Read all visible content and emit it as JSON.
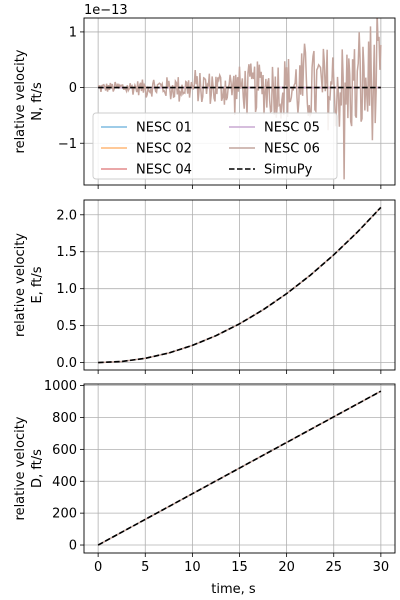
{
  "chart_data": [
    {
      "type": "line",
      "title": "",
      "xlabel": "",
      "ylabel": "relative velocity\nN, ft/s",
      "y_offset_label": "1e−13",
      "xlim": [
        -1.5,
        31.5
      ],
      "ylim": [
        -1.75,
        1.25
      ],
      "x_ticks": [
        0,
        5,
        10,
        15,
        20,
        25,
        30
      ],
      "y_ticks": [
        -1,
        0,
        1
      ],
      "y_tick_labels": [
        "−1",
        "0",
        "1"
      ],
      "grid": true,
      "legend": {
        "placement": "lower-left",
        "columns": 2,
        "entries": [
          {
            "name": "NESC 01",
            "color": "#7fbce0",
            "dash": "solid"
          },
          {
            "name": "NESC 02",
            "color": "#ffb777",
            "dash": "solid"
          },
          {
            "name": "NESC 04",
            "color": "#e48a8c",
            "dash": "solid"
          },
          {
            "name": "NESC 05",
            "color": "#c9a9d2",
            "dash": "solid"
          },
          {
            "name": "NESC 06",
            "color": "#c4a59d",
            "dash": "solid"
          },
          {
            "name": "SimuPy",
            "color": "#000000",
            "dash": "dashed"
          }
        ]
      },
      "series": [
        {
          "name": "NESC 01",
          "color": "#7fbce0",
          "x": [
            0,
            30
          ],
          "y": [
            0,
            0
          ]
        },
        {
          "name": "NESC 02",
          "color": "#ffb777",
          "x": [
            0,
            30
          ],
          "y": [
            0,
            0
          ]
        },
        {
          "name": "NESC 04",
          "color": "#e48a8c",
          "x": [
            0,
            30
          ],
          "y": [
            0,
            0
          ]
        },
        {
          "name": "NESC 05",
          "color": "#c9a9d2",
          "x": [
            0,
            30
          ],
          "y": [
            0,
            0
          ]
        },
        {
          "name": "NESC 06",
          "color": "#c4a59d",
          "noise": true,
          "x_range": [
            0,
            30
          ],
          "amplitude_profile": {
            "x": [
              0,
              5,
              10,
              15,
              20,
              25,
              30
            ],
            "amplitude": [
              0.08,
              0.15,
              0.25,
              0.4,
              0.6,
              0.8,
              1.0
            ]
          },
          "extremes": {
            "max": 1.1,
            "min": -1.65
          }
        },
        {
          "name": "SimuPy",
          "color": "#000000",
          "dash": "dashed",
          "x": [
            0,
            30
          ],
          "y": [
            0,
            0
          ]
        }
      ]
    },
    {
      "type": "line",
      "title": "",
      "xlabel": "",
      "ylabel": "relative velocity\nE, ft/s",
      "xlim": [
        -1.5,
        31.5
      ],
      "ylim": [
        -0.1,
        2.2
      ],
      "x_ticks": [
        0,
        5,
        10,
        15,
        20,
        25,
        30
      ],
      "y_ticks": [
        0.0,
        0.5,
        1.0,
        1.5,
        2.0
      ],
      "y_tick_labels": [
        "0.0",
        "0.5",
        "1.0",
        "1.5",
        "2.0"
      ],
      "grid": true,
      "series": [
        {
          "name": "NESC 06",
          "color": "#c4a59d",
          "x": [
            0,
            2.5,
            5,
            7.5,
            10,
            12.5,
            15,
            17.5,
            20,
            22.5,
            25,
            27.5,
            30
          ],
          "y": [
            0,
            0.015,
            0.058,
            0.13,
            0.233,
            0.364,
            0.525,
            0.714,
            0.933,
            1.181,
            1.458,
            1.764,
            2.1
          ]
        },
        {
          "name": "SimuPy",
          "color": "#000000",
          "dash": "dashed",
          "x": [
            0,
            2.5,
            5,
            7.5,
            10,
            12.5,
            15,
            17.5,
            20,
            22.5,
            25,
            27.5,
            30
          ],
          "y": [
            0,
            0.015,
            0.058,
            0.13,
            0.233,
            0.364,
            0.525,
            0.714,
            0.933,
            1.181,
            1.458,
            1.764,
            2.1
          ]
        }
      ]
    },
    {
      "type": "line",
      "title": "",
      "xlabel": "time, s",
      "ylabel": "relative velocity\nD, ft/s",
      "xlim": [
        -1.5,
        31.5
      ],
      "ylim": [
        -50,
        1010
      ],
      "x_ticks": [
        0,
        5,
        10,
        15,
        20,
        25,
        30
      ],
      "x_tick_labels": [
        "0",
        "5",
        "10",
        "15",
        "20",
        "25",
        "30"
      ],
      "y_ticks": [
        0,
        200,
        400,
        600,
        800,
        1000
      ],
      "y_tick_labels": [
        "0",
        "200",
        "400",
        "600",
        "800",
        "1000"
      ],
      "grid": true,
      "series": [
        {
          "name": "NESC 06",
          "color": "#c4a59d",
          "x": [
            0,
            30
          ],
          "y": [
            0,
            965
          ]
        },
        {
          "name": "SimuPy",
          "color": "#000000",
          "dash": "dashed",
          "x": [
            0,
            30
          ],
          "y": [
            0,
            965
          ]
        }
      ]
    }
  ]
}
